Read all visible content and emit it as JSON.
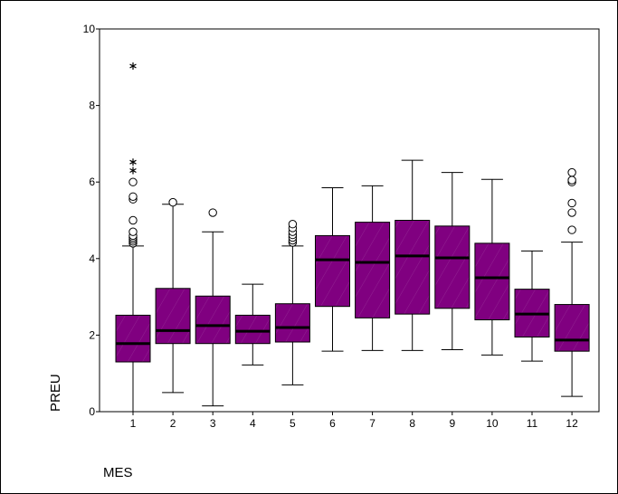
{
  "chart_data": {
    "type": "boxplot",
    "xlabel": "MES",
    "ylabel": "PREU",
    "ylim": [
      0,
      10
    ],
    "yticks": [
      0,
      2,
      4,
      6,
      8,
      10
    ],
    "grid": false,
    "colors": {
      "box_fill": "#800080",
      "median": "#000000",
      "whisker": "#000000"
    },
    "categories": [
      "1",
      "2",
      "3",
      "4",
      "5",
      "6",
      "7",
      "8",
      "9",
      "10",
      "11",
      "12"
    ],
    "boxes": [
      {
        "category": "1",
        "whisker_low": 0.0,
        "q1": 1.3,
        "median": 1.78,
        "q3": 2.52,
        "whisker_high": 4.33
      },
      {
        "category": "2",
        "whisker_low": 0.5,
        "q1": 1.78,
        "median": 2.12,
        "q3": 3.22,
        "whisker_high": 5.42
      },
      {
        "category": "3",
        "whisker_low": 0.15,
        "q1": 1.78,
        "median": 2.25,
        "q3": 3.02,
        "whisker_high": 4.7
      },
      {
        "category": "4",
        "whisker_low": 1.22,
        "q1": 1.78,
        "median": 2.1,
        "q3": 2.52,
        "whisker_high": 3.33
      },
      {
        "category": "5",
        "whisker_low": 0.7,
        "q1": 1.82,
        "median": 2.2,
        "q3": 2.82,
        "whisker_high": 4.33
      },
      {
        "category": "6",
        "whisker_low": 1.58,
        "q1": 2.75,
        "median": 3.97,
        "q3": 4.6,
        "whisker_high": 5.85
      },
      {
        "category": "7",
        "whisker_low": 1.6,
        "q1": 2.45,
        "median": 3.9,
        "q3": 4.95,
        "whisker_high": 5.9
      },
      {
        "category": "8",
        "whisker_low": 1.6,
        "q1": 2.55,
        "median": 4.07,
        "q3": 5.0,
        "whisker_high": 6.57
      },
      {
        "category": "9",
        "whisker_low": 1.62,
        "q1": 2.7,
        "median": 4.02,
        "q3": 4.85,
        "whisker_high": 6.25
      },
      {
        "category": "10",
        "whisker_low": 1.48,
        "q1": 2.4,
        "median": 3.5,
        "q3": 4.4,
        "whisker_high": 6.07
      },
      {
        "category": "11",
        "whisker_low": 1.32,
        "q1": 1.95,
        "median": 2.55,
        "q3": 3.2,
        "whisker_high": 4.2
      },
      {
        "category": "12",
        "whisker_low": 0.4,
        "q1": 1.58,
        "median": 1.87,
        "q3": 2.8,
        "whisker_high": 4.43
      }
    ],
    "outliers": [
      {
        "category": "1",
        "values": [
          4.4,
          4.45,
          4.5,
          4.55,
          4.6,
          4.7,
          5.0,
          5.55,
          5.62,
          6.0
        ]
      },
      {
        "category": "2",
        "values": [
          5.47
        ]
      },
      {
        "category": "3",
        "values": [
          5.2
        ]
      },
      {
        "category": "5",
        "values": [
          4.42,
          4.48,
          4.55,
          4.62,
          4.7,
          4.8,
          4.9
        ]
      },
      {
        "category": "12",
        "values": [
          4.75,
          5.2,
          5.45,
          6.0,
          6.05,
          6.25
        ]
      }
    ],
    "extremes": [
      {
        "category": "1",
        "values": [
          6.3,
          6.52,
          9.03
        ]
      }
    ]
  }
}
